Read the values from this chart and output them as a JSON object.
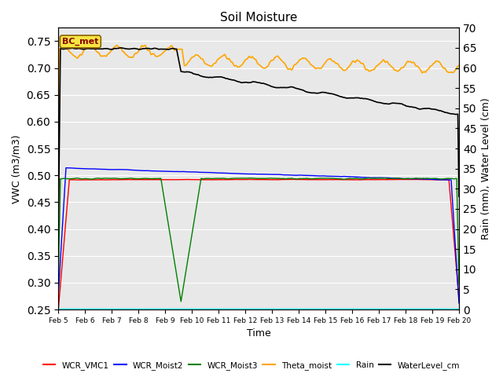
{
  "title": "Soil Moisture",
  "xlabel": "Time",
  "ylabel_left": "VWC (m3/m3)",
  "ylabel_right": "Rain (mm), Water Level (cm)",
  "ylim_left": [
    0.25,
    0.775
  ],
  "ylim_right": [
    0,
    70
  ],
  "yticks_left": [
    0.25,
    0.3,
    0.35,
    0.4,
    0.45,
    0.5,
    0.55,
    0.6,
    0.65,
    0.7,
    0.75
  ],
  "yticks_right": [
    0,
    5,
    10,
    15,
    20,
    25,
    30,
    35,
    40,
    45,
    50,
    55,
    60,
    65,
    70
  ],
  "background_color": "#e8e8e8",
  "annotation_text": "BC_met",
  "legend_entries": [
    "WCR_VMC1",
    "WCR_Moist2",
    "WCR_Moist3",
    "Theta_moist",
    "Rain",
    "WaterLevel_cm"
  ],
  "legend_colors": [
    "red",
    "blue",
    "green",
    "orange",
    "cyan",
    "black"
  ],
  "xlim": [
    0,
    15
  ],
  "xtick_labels": [
    "Feb 5",
    "Feb 6",
    "Feb 7",
    "Feb 8",
    "Feb 9",
    "Feb 10",
    "Feb 11",
    "Feb 12",
    "Feb 13",
    "Feb 14",
    "Feb 15",
    "Feb 16",
    "Feb 17",
    "Feb 18",
    "Feb 19",
    "Feb 20"
  ]
}
